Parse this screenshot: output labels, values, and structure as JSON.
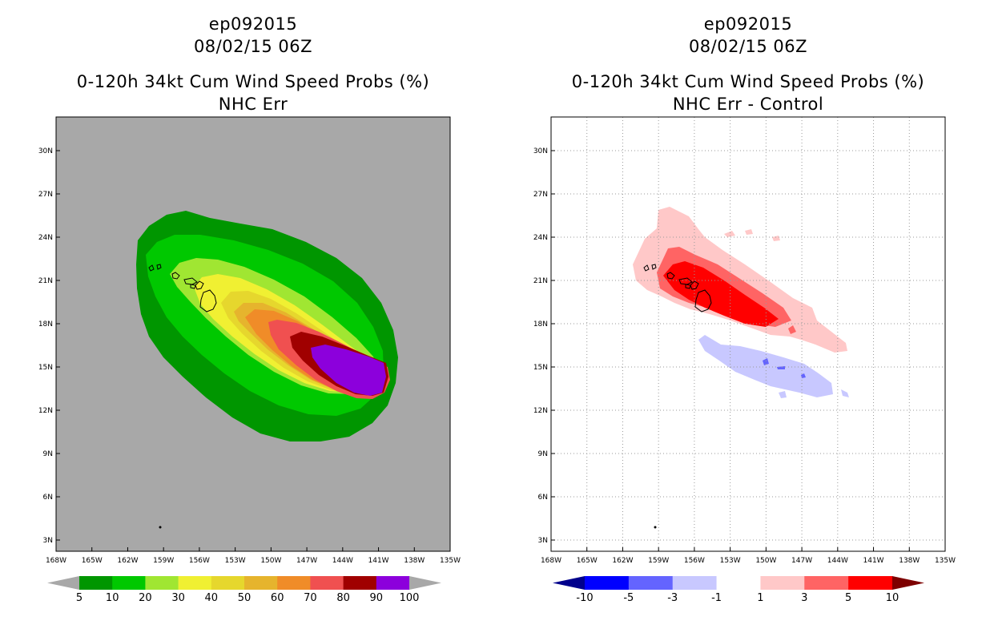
{
  "left_panel": {
    "storm_id": "ep092015",
    "datetime": "08/02/15 06Z",
    "product": "0-120h 34kt Cum Wind Speed Probs (%)",
    "subtitle": "NHC Err",
    "background_color": "#a8a8a8",
    "colorbar": {
      "labels": [
        "5",
        "10",
        "20",
        "30",
        "40",
        "50",
        "60",
        "70",
        "80",
        "90",
        "100"
      ],
      "colors": [
        "#009600",
        "#00c800",
        "#a0e632",
        "#f0f032",
        "#e6d72d",
        "#e6b42d",
        "#f08c28",
        "#f05050",
        "#a00000",
        "#8c00dc"
      ]
    }
  },
  "right_panel": {
    "storm_id": "ep092015",
    "datetime": "08/02/15 06Z",
    "product": "0-120h 34kt Cum Wind Speed Probs (%)",
    "subtitle": "NHC Err - Control",
    "background_color": "#ffffff",
    "colorbar": {
      "labels": [
        "-10",
        "-5",
        "-3",
        "-1",
        "1",
        "3",
        "5",
        "10"
      ],
      "colors": [
        "#0000ff",
        "#6464ff",
        "#c8c8ff",
        "#ffffff",
        "#ffc8c8",
        "#ff6464",
        "#ff0000"
      ],
      "low_arrow_color": "#00008c",
      "high_arrow_color": "#7d0000"
    }
  },
  "axes": {
    "lon_labels": [
      "168W",
      "165W",
      "162W",
      "159W",
      "156W",
      "153W",
      "150W",
      "147W",
      "144W",
      "141W",
      "138W",
      "135W"
    ],
    "lat_labels": [
      "3N",
      "6N",
      "9N",
      "12N",
      "15N",
      "18N",
      "21N",
      "24N",
      "27N",
      "30N"
    ]
  }
}
